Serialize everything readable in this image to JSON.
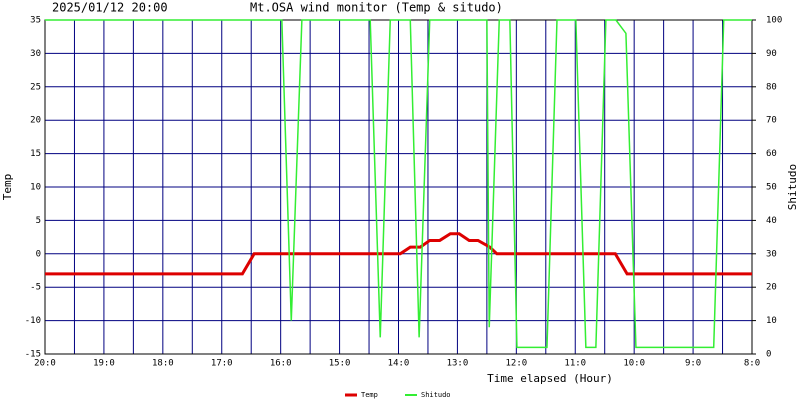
{
  "chart_data": {
    "type": "line",
    "date": "2025/01/12 20:00",
    "title": "Mt.OSA wind monitor (Temp & situdo)",
    "xlabel": "Time elapsed (Hour)",
    "ylabel": "Temp",
    "y2label": "Shitudo",
    "xlim": [
      20,
      8
    ],
    "xticks": [
      {
        "value": 20,
        "label": "20:0"
      },
      {
        "value": 19,
        "label": "19:0"
      },
      {
        "value": 18,
        "label": "18:0"
      },
      {
        "value": 17,
        "label": "17:0"
      },
      {
        "value": 16,
        "label": "16:0"
      },
      {
        "value": 15,
        "label": "15:0"
      },
      {
        "value": 14,
        "label": "14:0"
      },
      {
        "value": 13,
        "label": "13:0"
      },
      {
        "value": 12,
        "label": "12:0"
      },
      {
        "value": 11,
        "label": "11:0"
      },
      {
        "value": 10,
        "label": "10:0"
      },
      {
        "value": 9,
        "label": "9:0"
      },
      {
        "value": 8,
        "label": "8:0"
      }
    ],
    "ylim": [
      -15,
      35
    ],
    "yticks": [
      -15,
      -10,
      -5,
      0,
      5,
      10,
      15,
      20,
      25,
      30,
      35
    ],
    "y2lim": [
      0,
      100
    ],
    "y2ticks": [
      0,
      10,
      20,
      30,
      40,
      50,
      60,
      70,
      80,
      90,
      100
    ],
    "grid": true,
    "grid_color": "#000080",
    "legend": "bottom",
    "series": [
      {
        "name": "Temp",
        "color": "#dd0000",
        "x": [
          20,
          16.65,
          16.45,
          13.97,
          13.8,
          13.63,
          13.47,
          13.3,
          13.12,
          12.97,
          12.8,
          12.65,
          12.45,
          12.33,
          10.32,
          10.12,
          8
        ],
        "values": [
          -3,
          -3,
          0,
          0,
          1,
          1,
          2,
          2,
          3,
          3,
          2,
          2,
          1,
          0,
          0,
          -3,
          -3
        ]
      },
      {
        "name": "Shitudo",
        "color": "#33ee33",
        "axis": "y2",
        "x": [
          20,
          15.98,
          15.82,
          15.64,
          14.48,
          14.31,
          14.14,
          13.8,
          13.65,
          13.47,
          12.5,
          12.46,
          12.29,
          12.11,
          11.99,
          11.48,
          11.31,
          10.99,
          10.82,
          10.65,
          10.48,
          10.31,
          10.14,
          9.97,
          8.65,
          8.48,
          8
        ],
        "values": [
          100,
          100,
          10,
          100,
          100,
          5,
          100,
          100,
          5,
          100,
          100,
          8,
          100,
          100,
          2,
          2,
          100,
          100,
          2,
          2,
          100,
          100,
          96,
          2,
          2,
          100,
          100
        ]
      }
    ]
  }
}
